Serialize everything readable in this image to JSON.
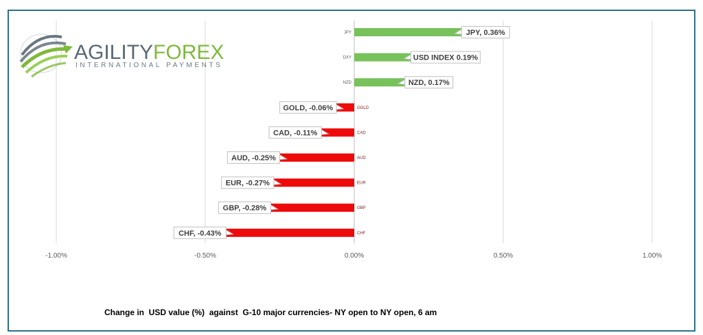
{
  "logo": {
    "brand_primary": "AGILITY",
    "brand_secondary": "FOREX",
    "tagline": "INTERNATIONAL PAYMENTS",
    "colors": {
      "primary": "#5a6874",
      "secondary": "#7fb93c"
    }
  },
  "caption": "Change in  USD value (%)  against  G-10 major currencies- NY open to NY open, 6 am",
  "chart_data": {
    "type": "bar",
    "orientation": "horizontal",
    "categories": [
      "JPY",
      "DXY",
      "NZD",
      "GOLD",
      "CAD",
      "AUD",
      "EUR",
      "GBP",
      "CHF"
    ],
    "values": [
      0.36,
      0.19,
      0.17,
      -0.06,
      -0.11,
      -0.25,
      -0.27,
      -0.28,
      -0.43
    ],
    "data_labels": [
      "JPY, 0.36%",
      "USD INDEX 0.19%",
      "NZD, 0.17%",
      "GOLD, -0.06%",
      "CAD, -0.11%",
      "AUD, -0.25%",
      "EUR, -0.27%",
      "GBP, -0.28%",
      "CHF, -0.43%"
    ],
    "xlim": [
      -1.0,
      1.0
    ],
    "x_ticks": [
      -1.0,
      -0.5,
      0.0,
      0.5,
      1.0
    ],
    "x_tick_labels": [
      "-1.00%",
      "-0.50%",
      "0.00%",
      "0.50%",
      "1.00%"
    ],
    "grid": true,
    "colors": {
      "positive": "#77c25a",
      "negative": "#ee0a0a"
    }
  }
}
